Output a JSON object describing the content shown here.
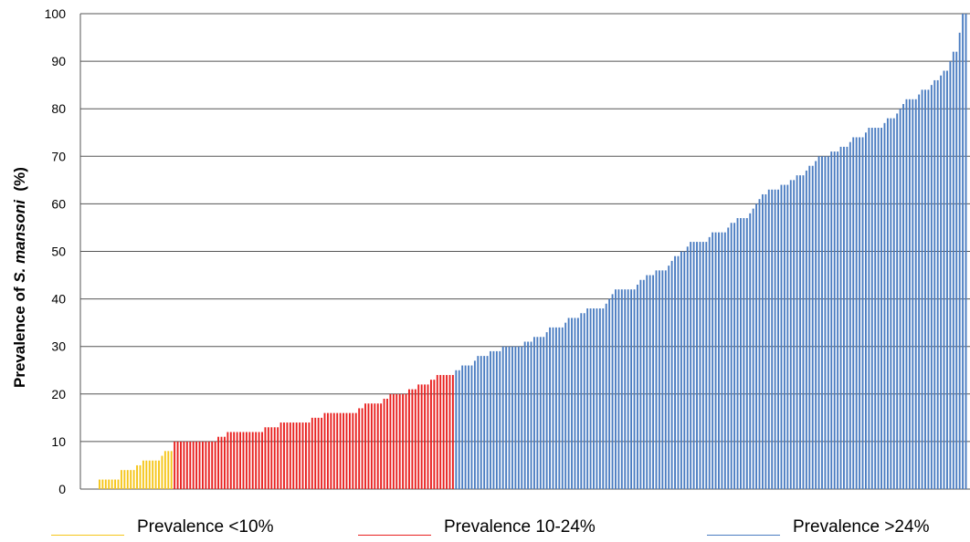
{
  "chart_data": {
    "type": "bar",
    "ylabel_parts": [
      "Prevalence of ",
      "S. mansoni",
      "  (%)"
    ],
    "ylim": [
      0,
      100
    ],
    "yticks": [
      0,
      10,
      20,
      30,
      40,
      50,
      60,
      70,
      80,
      90,
      100
    ],
    "grid": true,
    "legend_position": "bottom",
    "series": [
      {
        "name": "Prevalence <10%",
        "color": "#F5C518",
        "values": [
          2,
          2,
          2,
          2,
          2,
          2,
          2,
          4,
          4,
          4,
          4,
          4,
          5,
          5,
          6,
          6,
          6,
          6,
          6,
          6,
          7,
          8,
          8,
          8
        ]
      },
      {
        "name": "Prevalence 10-24%",
        "color": "#E8201F",
        "values": [
          10,
          10,
          10,
          10,
          10,
          10,
          10,
          10,
          10,
          10,
          10,
          10,
          10,
          10,
          11,
          11,
          11,
          12,
          12,
          12,
          12,
          12,
          12,
          12,
          12,
          12,
          12,
          12,
          12,
          13,
          13,
          13,
          13,
          13,
          14,
          14,
          14,
          14,
          14,
          14,
          14,
          14,
          14,
          14,
          15,
          15,
          15,
          15,
          16,
          16,
          16,
          16,
          16,
          16,
          16,
          16,
          16,
          16,
          16,
          17,
          17,
          18,
          18,
          18,
          18,
          18,
          18,
          19,
          19,
          20,
          20,
          20,
          20,
          20,
          20,
          21,
          21,
          21,
          22,
          22,
          22,
          22,
          23,
          23,
          24,
          24,
          24,
          24,
          24,
          24
        ]
      },
      {
        "name": "Prevalence >24%",
        "color": "#4A7CC1",
        "values": [
          25,
          25,
          26,
          26,
          26,
          26,
          27,
          28,
          28,
          28,
          28,
          29,
          29,
          29,
          29,
          30,
          30,
          30,
          30,
          30,
          30,
          30,
          31,
          31,
          31,
          32,
          32,
          32,
          32,
          33,
          34,
          34,
          34,
          34,
          34,
          35,
          36,
          36,
          36,
          36,
          37,
          37,
          38,
          38,
          38,
          38,
          38,
          38,
          39,
          40,
          41,
          42,
          42,
          42,
          42,
          42,
          42,
          42,
          43,
          44,
          44,
          45,
          45,
          45,
          46,
          46,
          46,
          46,
          47,
          48,
          49,
          49,
          50,
          50,
          51,
          52,
          52,
          52,
          52,
          52,
          52,
          53,
          54,
          54,
          54,
          54,
          54,
          55,
          56,
          56,
          57,
          57,
          57,
          57,
          58,
          59,
          60,
          61,
          62,
          62,
          63,
          63,
          63,
          63,
          64,
          64,
          64,
          65,
          65,
          66,
          66,
          66,
          67,
          68,
          68,
          69,
          70,
          70,
          70,
          70,
          71,
          71,
          71,
          72,
          72,
          72,
          73,
          74,
          74,
          74,
          74,
          75,
          76,
          76,
          76,
          76,
          76,
          77,
          78,
          78,
          78,
          79,
          80,
          81,
          82,
          82,
          82,
          82,
          83,
          84,
          84,
          84,
          85,
          86,
          86,
          87,
          88,
          88,
          90,
          92,
          92,
          96,
          100,
          100
        ]
      }
    ]
  }
}
